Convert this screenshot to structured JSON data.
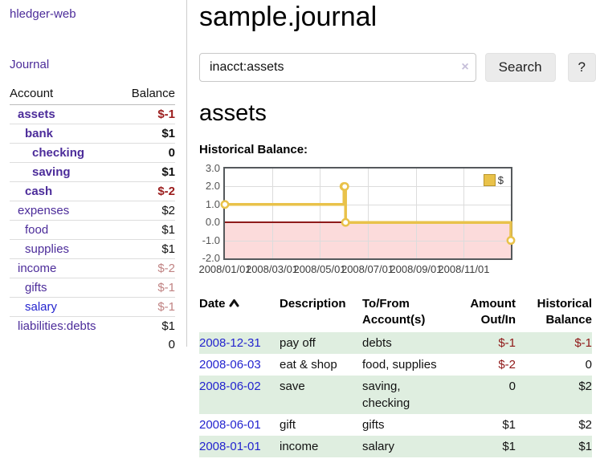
{
  "sidebar": {
    "brand": "hledger-web",
    "journal_label": "Journal",
    "accounts": {
      "headers": {
        "account": "Account",
        "balance": "Balance"
      },
      "rows": [
        {
          "name": "assets",
          "indent": 0,
          "bold": true,
          "link_color": "purple",
          "balance": "$-1",
          "balance_style": "neg"
        },
        {
          "name": "bank",
          "indent": 1,
          "bold": true,
          "link_color": "purple",
          "balance": "$1",
          "balance_style": "pos"
        },
        {
          "name": "checking",
          "indent": 2,
          "bold": true,
          "link_color": "purple",
          "balance": "0",
          "balance_style": "pos"
        },
        {
          "name": "saving",
          "indent": 2,
          "bold": true,
          "link_color": "purple",
          "balance": "$1",
          "balance_style": "pos"
        },
        {
          "name": "cash",
          "indent": 1,
          "bold": true,
          "link_color": "purple",
          "balance": "$-2",
          "balance_style": "neg"
        },
        {
          "name": "expenses",
          "indent": 0,
          "bold": false,
          "link_color": "purple",
          "balance": "$2",
          "balance_style": "pos"
        },
        {
          "name": "food",
          "indent": 1,
          "bold": false,
          "link_color": "purple",
          "balance": "$1",
          "balance_style": "pos"
        },
        {
          "name": "supplies",
          "indent": 1,
          "bold": false,
          "link_color": "purple",
          "balance": "$1",
          "balance_style": "pos"
        },
        {
          "name": "income",
          "indent": 0,
          "bold": false,
          "link_color": "purple",
          "balance": "$-2",
          "balance_style": "negdim"
        },
        {
          "name": "gifts",
          "indent": 1,
          "bold": false,
          "link_color": "purple",
          "balance": "$-1",
          "balance_style": "negdim"
        },
        {
          "name": "salary",
          "indent": 1,
          "bold": false,
          "link_color": "blue",
          "balance": "$-1",
          "balance_style": "negdim"
        },
        {
          "name": "liabilities:debts",
          "indent": 0,
          "bold": false,
          "link_color": "purple",
          "balance": "$1",
          "balance_style": "pos"
        }
      ],
      "total": "0"
    }
  },
  "main": {
    "title": "sample.journal",
    "search": {
      "value": "inacct:assets",
      "clear_icon": "×",
      "button_label": "Search",
      "help_label": "?"
    },
    "account_heading": "assets",
    "section_label": "Historical Balance:",
    "register": {
      "headers": {
        "date": "Date",
        "description": "Description",
        "accounts": "To/From Account(s)",
        "amount": "Amount Out/In",
        "balance": "Historical Balance"
      },
      "rows": [
        {
          "date": "2008-12-31",
          "description": "pay off",
          "accounts": "debts",
          "amount": "$-1",
          "amount_neg": true,
          "balance": "$-1",
          "balance_neg": true,
          "shade": true
        },
        {
          "date": "2008-06-03",
          "description": "eat & shop",
          "accounts": "food, supplies",
          "amount": "$-2",
          "amount_neg": true,
          "balance": "0",
          "balance_neg": false,
          "shade": false
        },
        {
          "date": "2008-06-02",
          "description": "save",
          "accounts": "saving, checking",
          "amount": "0",
          "amount_neg": false,
          "balance": "$2",
          "balance_neg": false,
          "shade": true
        },
        {
          "date": "2008-06-01",
          "description": "gift",
          "accounts": "gifts",
          "amount": "$1",
          "amount_neg": false,
          "balance": "$2",
          "balance_neg": false,
          "shade": false
        },
        {
          "date": "2008-01-01",
          "description": "income",
          "accounts": "salary",
          "amount": "$1",
          "amount_neg": false,
          "balance": "$1",
          "balance_neg": false,
          "shade": true
        }
      ]
    }
  },
  "chart_data": {
    "type": "line",
    "title": "Historical Balance",
    "legend": "$",
    "legend_position": "top-right",
    "grid": true,
    "x_range": [
      0,
      365
    ],
    "y_range": [
      -2,
      3
    ],
    "y_ticks": [
      "3.0",
      "2.0",
      "1.0",
      "0.0",
      "-1.0",
      "-2.0"
    ],
    "x_ticks": [
      {
        "label": "2008/01/01",
        "day": 0
      },
      {
        "label": "2008/03/01",
        "day": 60
      },
      {
        "label": "2008/05/01",
        "day": 121
      },
      {
        "label": "2008/07/01",
        "day": 182
      },
      {
        "label": "2008/09/01",
        "day": 244
      },
      {
        "label": "2008/11/01",
        "day": 305
      }
    ],
    "negative_fill": "#fcdbdb",
    "zero_line_color": "#8f1a1a",
    "series": [
      {
        "name": "$",
        "color": "#e9c24a",
        "step": true,
        "points": [
          {
            "date": "2008/01/01",
            "day": 0,
            "value": 1
          },
          {
            "date": "2008/06/01",
            "day": 152,
            "value": 2
          },
          {
            "date": "2008/06/02",
            "day": 153,
            "value": 2
          },
          {
            "date": "2008/06/03",
            "day": 154,
            "value": 0
          },
          {
            "date": "2008/12/31",
            "day": 365,
            "value": -1
          }
        ]
      }
    ]
  }
}
